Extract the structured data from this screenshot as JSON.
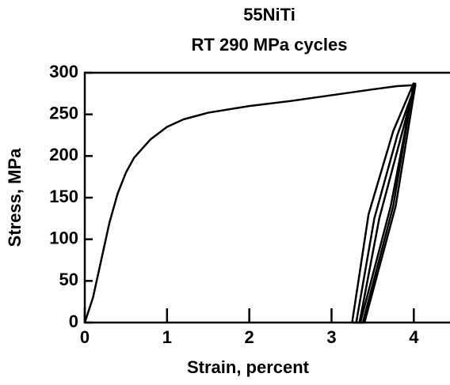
{
  "chart_data": {
    "type": "line",
    "title": "55NiTi",
    "subtitle": "RT 290 MPa cycles",
    "x_label": "Strain, percent",
    "y_label": "Stress, MPa",
    "xlim": [
      0,
      4.44
    ],
    "ylim": [
      0,
      300
    ],
    "xticks": [
      0,
      1,
      2,
      3,
      4
    ],
    "yticks": [
      0,
      50,
      100,
      150,
      200,
      250,
      300
    ],
    "color": "#000000",
    "series": [
      {
        "x": [
          0,
          0.1,
          0.2,
          0.3,
          0.4,
          0.5,
          0.6,
          0.8,
          1.0,
          1.2,
          1.5,
          2.0,
          2.5,
          3.0,
          3.5,
          3.8,
          4.0
        ],
        "values": [
          0,
          30,
          75,
          120,
          155,
          180,
          198,
          220,
          235,
          244,
          252,
          260,
          266,
          273,
          280,
          284,
          285
        ]
      },
      {
        "x": [
          4.0,
          3.72,
          3.35,
          3.25,
          3.45,
          3.75,
          4.0
        ],
        "values": [
          285,
          140,
          0,
          0,
          130,
          230,
          288
        ]
      },
      {
        "x": [
          4.0,
          3.75,
          3.38,
          3.3,
          3.52,
          3.8,
          4.02
        ],
        "values": [
          288,
          140,
          0,
          0,
          125,
          225,
          286
        ]
      },
      {
        "x": [
          4.02,
          3.78,
          3.4,
          3.34,
          3.58,
          3.85,
          4.02
        ],
        "values": [
          286,
          140,
          0,
          0,
          125,
          225,
          288
        ]
      }
    ]
  }
}
